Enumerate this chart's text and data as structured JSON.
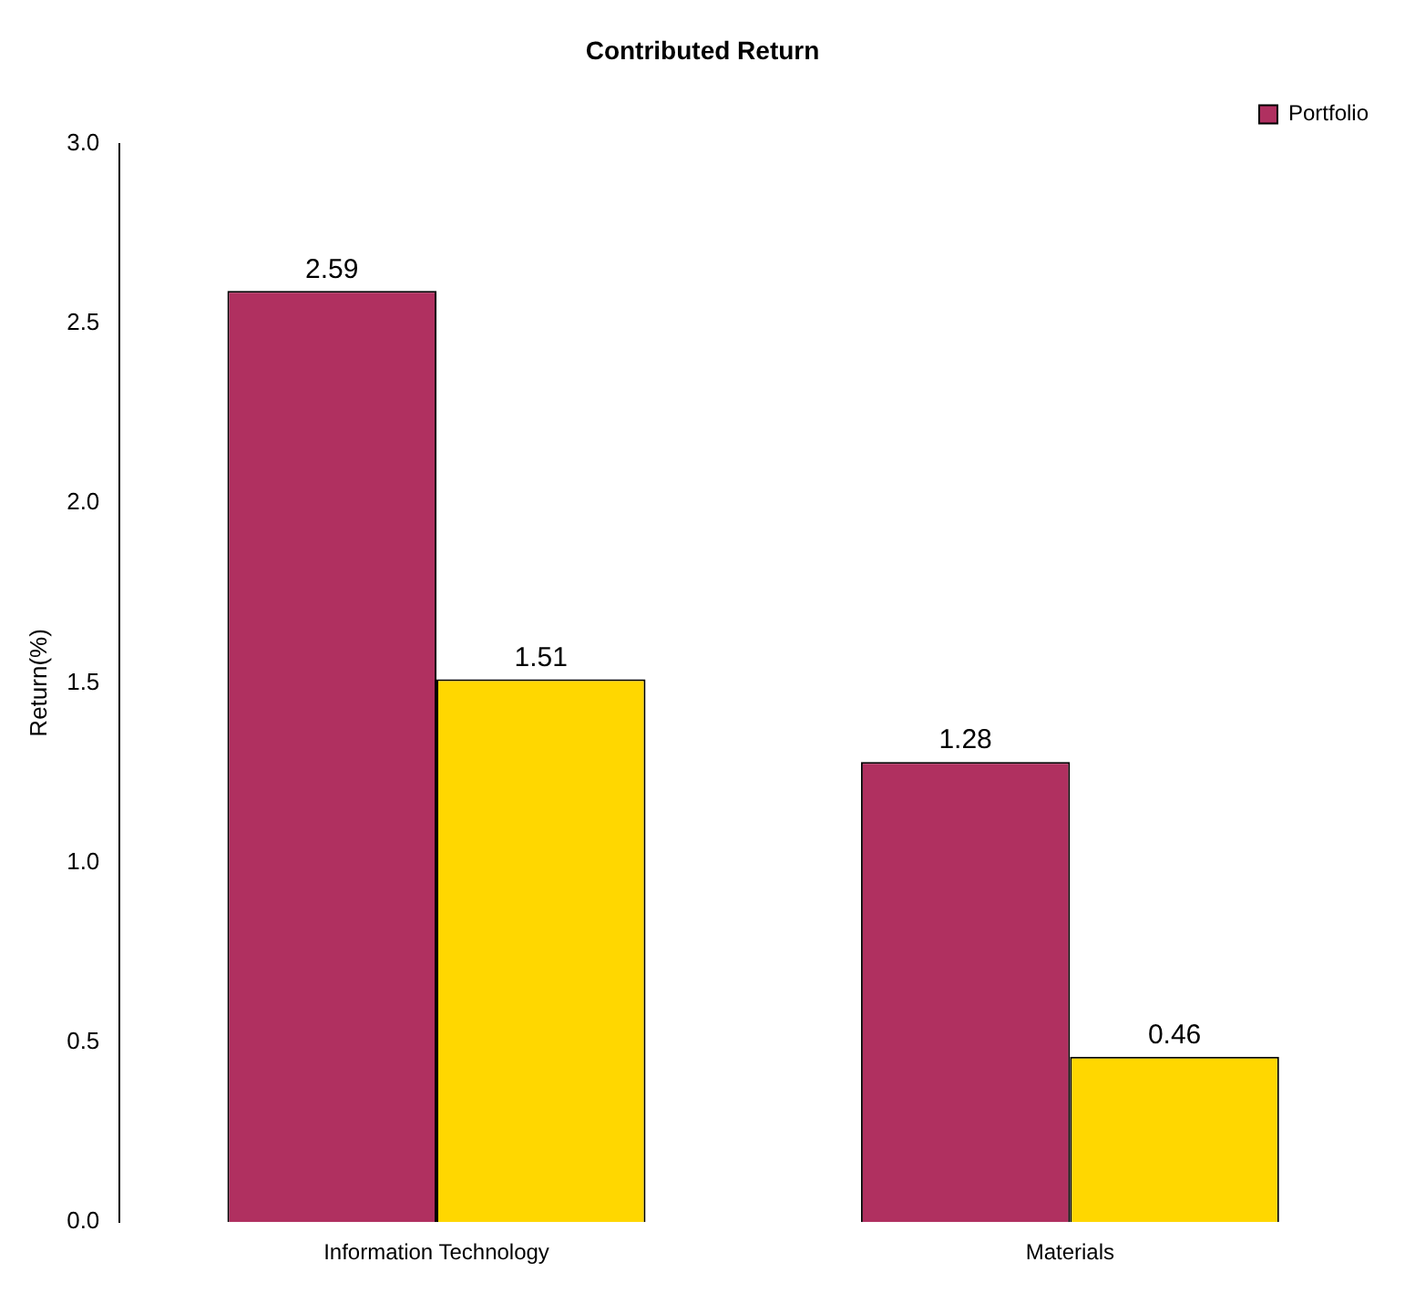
{
  "chart_data": {
    "type": "bar",
    "title": "Contributed Return",
    "ylabel": "Return(%)",
    "categories": [
      "Information Technology",
      "Materials"
    ],
    "series": [
      {
        "name": "Portfolio",
        "color": "#b03060",
        "values": [
          2.59,
          1.28
        ]
      },
      {
        "color": "#ffd700",
        "values": [
          1.51,
          0.46
        ]
      }
    ],
    "ylim": [
      0,
      3
    ],
    "yticks": [
      {
        "value": 0,
        "label": "0.0"
      },
      0.5,
      {
        "value": 1,
        "label": "1.0"
      },
      1.5,
      {
        "value": 2,
        "label": "2.0"
      },
      2.5,
      {
        "value": 3,
        "label": "3.0"
      }
    ],
    "data_labels": true,
    "grid": false,
    "legend": "top right"
  }
}
